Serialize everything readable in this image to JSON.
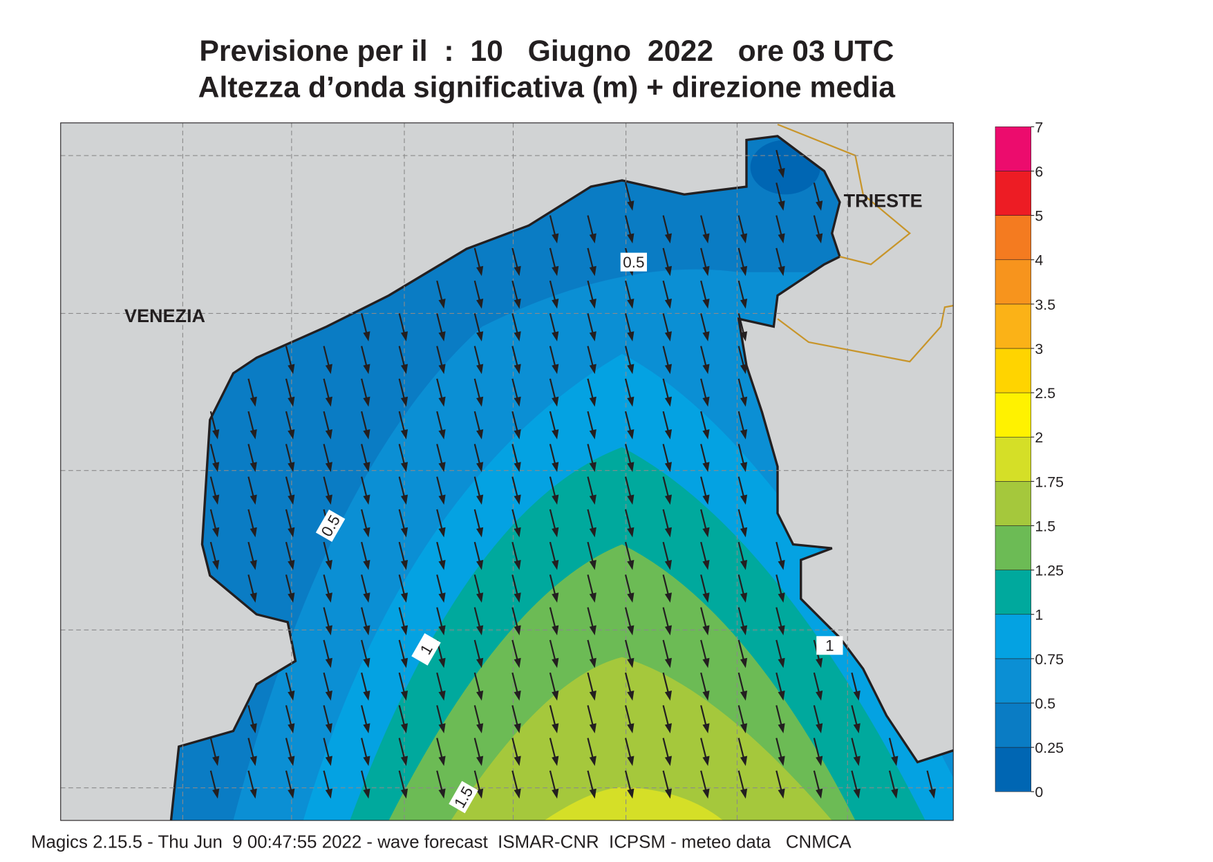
{
  "header": {
    "title": "Previsione per il  :  10   Giugno  2022   ore 03 UTC",
    "subtitle": "Altezza d’onda significativa (m) + direzione media"
  },
  "cities": [
    "VENEZIA",
    "TRIESTE"
  ],
  "contour_labels": [
    0.5,
    0.5,
    1,
    1,
    1.5
  ],
  "colorbar": {
    "levels": [
      0,
      0.25,
      0.5,
      0.75,
      1,
      1.25,
      1.5,
      1.75,
      2,
      2.5,
      3,
      3.5,
      4,
      5,
      6,
      7
    ],
    "colors": [
      "#0066b3",
      "#0a7cc4",
      "#0b8fd4",
      "#04a2e2",
      "#00a99d",
      "#6cbb55",
      "#a5c83c",
      "#d5df27",
      "#fff200",
      "#ffd400",
      "#fbb217",
      "#f7941d",
      "#f47b20",
      "#ed1c24",
      "#ec0c6d"
    ]
  },
  "footer": "Magics 2.15.5 - Thu Jun  9 00:47:55 2022 - wave forecast  ISMAR-CNR  ICPSM - meteo data   CNMCA"
}
